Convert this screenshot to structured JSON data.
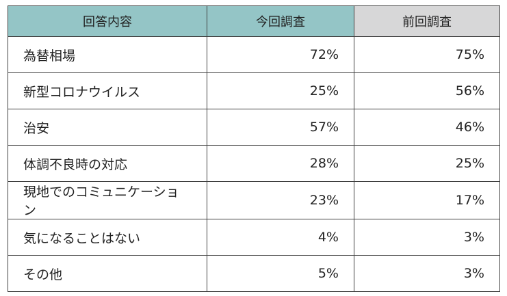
{
  "chart_data": {
    "type": "table",
    "columns": [
      "回答内容",
      "今回調査",
      "前回調査"
    ],
    "header_colors": [
      "#94c5c6",
      "#94c5c6",
      "#d7d7d8"
    ],
    "rows": [
      {
        "label": "為替相場",
        "current": "72%",
        "previous": "75%"
      },
      {
        "label": "新型コロナウイルス",
        "current": "25%",
        "previous": "56%"
      },
      {
        "label": "治安",
        "current": "57%",
        "previous": "46%"
      },
      {
        "label": "体調不良時の対応",
        "current": "28%",
        "previous": "25%"
      },
      {
        "label": "現地でのコミュニケーション",
        "current": "23%",
        "previous": "17%"
      },
      {
        "label": "気になることはない",
        "current": "4%",
        "previous": "3%"
      },
      {
        "label": "その他",
        "current": "5%",
        "previous": "3%"
      }
    ]
  }
}
